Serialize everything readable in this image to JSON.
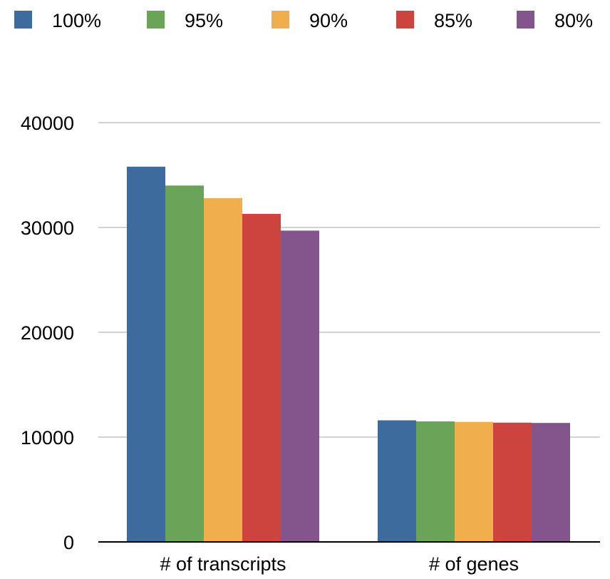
{
  "chart_data": {
    "type": "bar",
    "title": "",
    "xlabel": "",
    "ylabel": "",
    "categories": [
      "# of transcripts",
      "# of genes"
    ],
    "series": [
      {
        "name": "100%",
        "values": [
          35800,
          11600
        ],
        "color": "#3d6b9e"
      },
      {
        "name": "95%",
        "values": [
          34000,
          11500
        ],
        "color": "#6aa458"
      },
      {
        "name": "90%",
        "values": [
          32800,
          11450
        ],
        "color": "#f0ae4c"
      },
      {
        "name": "85%",
        "values": [
          31300,
          11380
        ],
        "color": "#cd433d"
      },
      {
        "name": "80%",
        "values": [
          29700,
          11350
        ],
        "color": "#83558c"
      }
    ],
    "ylim": [
      0,
      40000
    ],
    "yticks": [
      0,
      10000,
      20000,
      30000,
      40000
    ],
    "grid": true,
    "legend_position": "top",
    "grid_color": "#b8b8b8"
  }
}
